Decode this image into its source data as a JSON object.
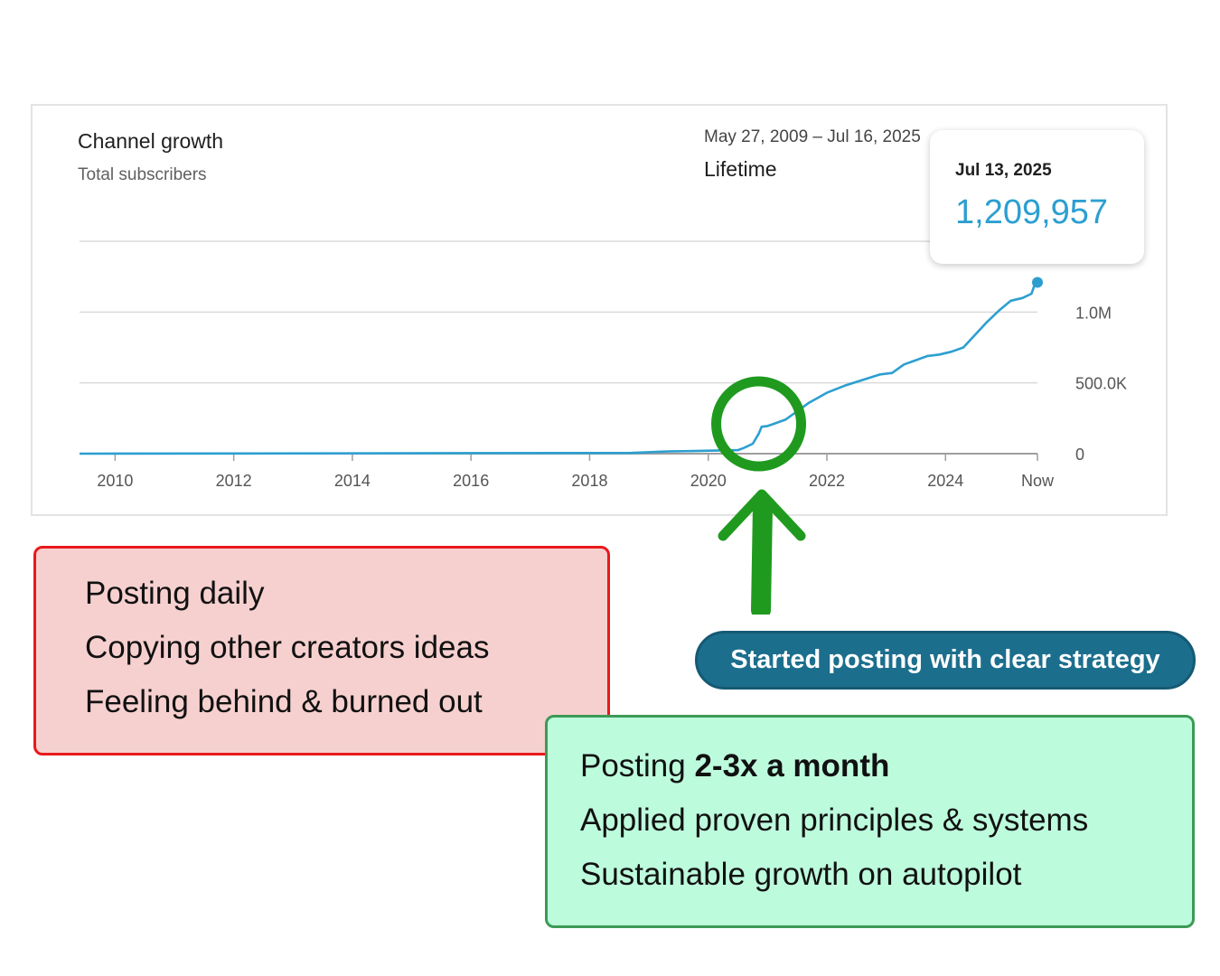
{
  "card": {
    "title": "Channel growth",
    "subtitle": "Total subscribers",
    "date_range": "May 27, 2009 – Jul 16, 2025",
    "period": "Lifetime"
  },
  "tooltip": {
    "date": "Jul 13, 2025",
    "value": "1,209,957"
  },
  "colors": {
    "line": "#2c9fd0",
    "grid": "#dadada",
    "highlight": "#1f9a1f",
    "red_box": "#f6d0cf",
    "green_box": "#bdfbdd",
    "pill": "#1c6e8d"
  },
  "chart_data": {
    "type": "line",
    "title": "Channel growth",
    "subtitle": "Total subscribers",
    "x_tick_labels": [
      "2010",
      "2012",
      "2014",
      "2016",
      "2018",
      "2020",
      "2022",
      "2024",
      "Now"
    ],
    "x_tick_values": [
      2010,
      2012,
      2014,
      2016,
      2018,
      2020,
      2022,
      2024,
      2025.55
    ],
    "y_tick_labels": [
      "0",
      "500.0K",
      "1.0M"
    ],
    "y_tick_values": [
      0,
      500000,
      1000000
    ],
    "xlim": [
      2009.4,
      2025.55
    ],
    "ylim": [
      0,
      1500000
    ],
    "grid": true,
    "series": [
      {
        "x": [
          2009.4,
          2018.7,
          2019.3,
          2020.5,
          2020.6,
          2020.75,
          2020.85,
          2020.9,
          2021.0,
          2021.1,
          2021.3,
          2021.5,
          2021.7,
          2022.0,
          2022.3,
          2022.6,
          2022.9,
          2023.1,
          2023.3,
          2023.5,
          2023.7,
          2023.9,
          2024.1,
          2024.3,
          2024.5,
          2024.7,
          2024.9,
          2025.1,
          2025.3,
          2025.45,
          2025.5,
          2025.55
        ],
        "y": [
          0,
          5000,
          15000,
          25000,
          40000,
          70000,
          140000,
          190000,
          195000,
          210000,
          240000,
          300000,
          360000,
          430000,
          480000,
          520000,
          560000,
          570000,
          630000,
          660000,
          690000,
          700000,
          720000,
          750000,
          840000,
          930000,
          1010000,
          1080000,
          1100000,
          1130000,
          1190000,
          1209957
        ]
      }
    ],
    "highlight_year": 2020.85
  },
  "annotations": {
    "pill": "Started posting with clear strategy",
    "before": [
      "Posting daily",
      "Copying other creators ideas",
      "Feeling behind & burned out"
    ],
    "after_line1_prefix": "Posting ",
    "after_line1_bold": "2-3x a month",
    "after_line2": "Applied proven principles & systems",
    "after_line3": "Sustainable growth on autopilot"
  }
}
